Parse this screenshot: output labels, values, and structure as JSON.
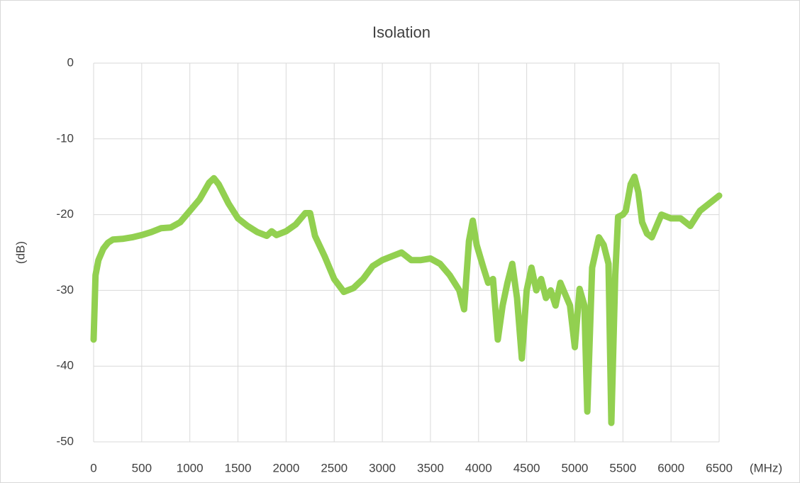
{
  "chart_data": {
    "type": "line",
    "title": "Isolation",
    "y_label": "(dB)",
    "x_label": "(MHz)",
    "x": [
      0,
      20,
      50,
      100,
      150,
      200,
      300,
      400,
      500,
      600,
      700,
      800,
      900,
      1000,
      1100,
      1200,
      1250,
      1300,
      1400,
      1500,
      1600,
      1700,
      1800,
      1850,
      1900,
      2000,
      2100,
      2200,
      2250,
      2300,
      2400,
      2500,
      2600,
      2700,
      2800,
      2900,
      3000,
      3100,
      3200,
      3300,
      3400,
      3500,
      3600,
      3700,
      3800,
      3850,
      3900,
      3940,
      3980,
      4050,
      4100,
      4150,
      4200,
      4250,
      4300,
      4350,
      4400,
      4450,
      4500,
      4550,
      4600,
      4650,
      4700,
      4750,
      4800,
      4850,
      4900,
      4950,
      5000,
      5050,
      5100,
      5130,
      5180,
      5250,
      5300,
      5350,
      5380,
      5420,
      5450,
      5500,
      5530,
      5580,
      5620,
      5660,
      5700,
      5750,
      5800,
      5850,
      5900,
      6000,
      6100,
      6200,
      6300,
      6400,
      6500
    ],
    "values": [
      -36.5,
      -28,
      -26,
      -24.5,
      -23.7,
      -23.3,
      -23.2,
      -23,
      -22.7,
      -22.3,
      -21.8,
      -21.7,
      -21,
      -19.5,
      -18,
      -15.8,
      -15.2,
      -16,
      -18.5,
      -20.5,
      -21.5,
      -22.3,
      -22.8,
      -22.2,
      -22.7,
      -22.2,
      -21.3,
      -19.8,
      -19.8,
      -22.8,
      -25.5,
      -28.5,
      -30.2,
      -29.7,
      -28.5,
      -26.8,
      -26,
      -25.5,
      -25,
      -26,
      -26,
      -25.8,
      -26.5,
      -28,
      -30,
      -32.5,
      -23.5,
      -20.8,
      -24,
      -27,
      -29,
      -28.5,
      -36.5,
      -32,
      -29,
      -26.5,
      -31,
      -39,
      -30,
      -27,
      -30,
      -28.5,
      -31,
      -30,
      -32,
      -29,
      -30.5,
      -32,
      -37.5,
      -29.8,
      -32,
      -46,
      -27,
      -23,
      -24,
      -26.5,
      -47.5,
      -28,
      -20.3,
      -20,
      -19.5,
      -16,
      -15,
      -17,
      -21,
      -22.5,
      -23,
      -21.5,
      -20,
      -20.5,
      -20.5,
      -21.5,
      -19.5,
      -18.5,
      -17.5
    ],
    "color": "#92d050",
    "xlim": [
      0,
      6500
    ],
    "xticks": [
      0,
      500,
      1000,
      1500,
      2000,
      2500,
      3000,
      3500,
      4000,
      4500,
      5000,
      5500,
      6000,
      6500
    ],
    "ylim": [
      -50,
      0
    ],
    "yticks": [
      0,
      -10,
      -20,
      -30,
      -40,
      -50
    ],
    "grid": true
  }
}
